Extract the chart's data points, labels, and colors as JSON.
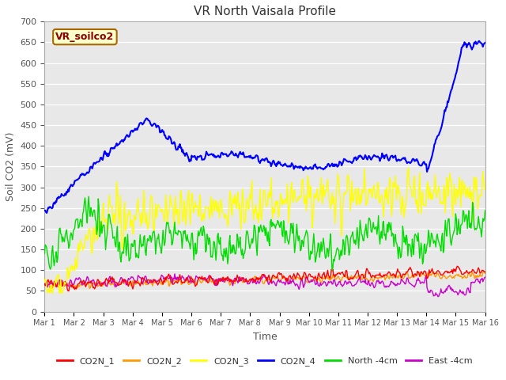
{
  "title": "VR North Vaisala Profile",
  "xlabel": "Time",
  "ylabel": "Soil CO2 (mV)",
  "ylim": [
    0,
    700
  ],
  "colors": {
    "CO2N_1": "#ff0000",
    "CO2N_2": "#ff9900",
    "CO2N_3": "#ffff00",
    "CO2N_4": "#0000ff",
    "North_4cm": "#00dd00",
    "East_4cm": "#cc00cc"
  },
  "fig_bg": "#ffffff",
  "plot_bg": "#e8e8e8",
  "grid_color": "#ffffff",
  "xtick_labels": [
    "Mar 1",
    "Mar 2",
    "Mar 3",
    "Mar 4",
    "Mar 5",
    "Mar 6",
    "Mar 7",
    "Mar 8",
    "Mar 9",
    "Mar 10",
    "Mar 11",
    "Mar 12",
    "Mar 13",
    "Mar 14",
    "Mar 15",
    "Mar 16"
  ],
  "legend_label": "VR_soilco2",
  "legend_bg": "#ffffcc",
  "legend_border": "#aa6600",
  "tick_color": "#555555",
  "spine_color": "#aaaaaa"
}
